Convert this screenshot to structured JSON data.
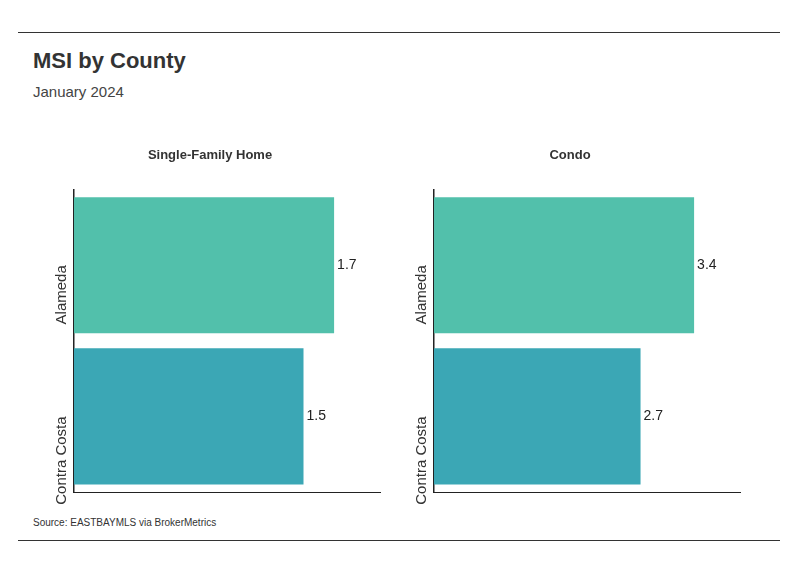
{
  "title": "MSI by County",
  "subtitle": "January 2024",
  "source": "Source:  EASTBAYMLS via BrokerMetrics",
  "chart_data": [
    {
      "type": "bar",
      "title": "Single-Family Home",
      "orientation": "horizontal",
      "categories": [
        "Alameda",
        "Contra Costa"
      ],
      "values": [
        1.7,
        1.5
      ],
      "colors": [
        "#52c0ab",
        "#3ba7b5"
      ],
      "xlim": [
        0,
        2
      ],
      "grid": false,
      "data_labels": true,
      "tick_labels": "y"
    },
    {
      "type": "bar",
      "title": "Condo",
      "orientation": "horizontal",
      "categories": [
        "Alameda",
        "Contra Costa"
      ],
      "values": [
        3.4,
        2.7
      ],
      "colors": [
        "#52c0ab",
        "#3ba7b5"
      ],
      "xlim": [
        0,
        4
      ],
      "grid": false,
      "data_labels": true,
      "tick_labels": "y"
    }
  ]
}
